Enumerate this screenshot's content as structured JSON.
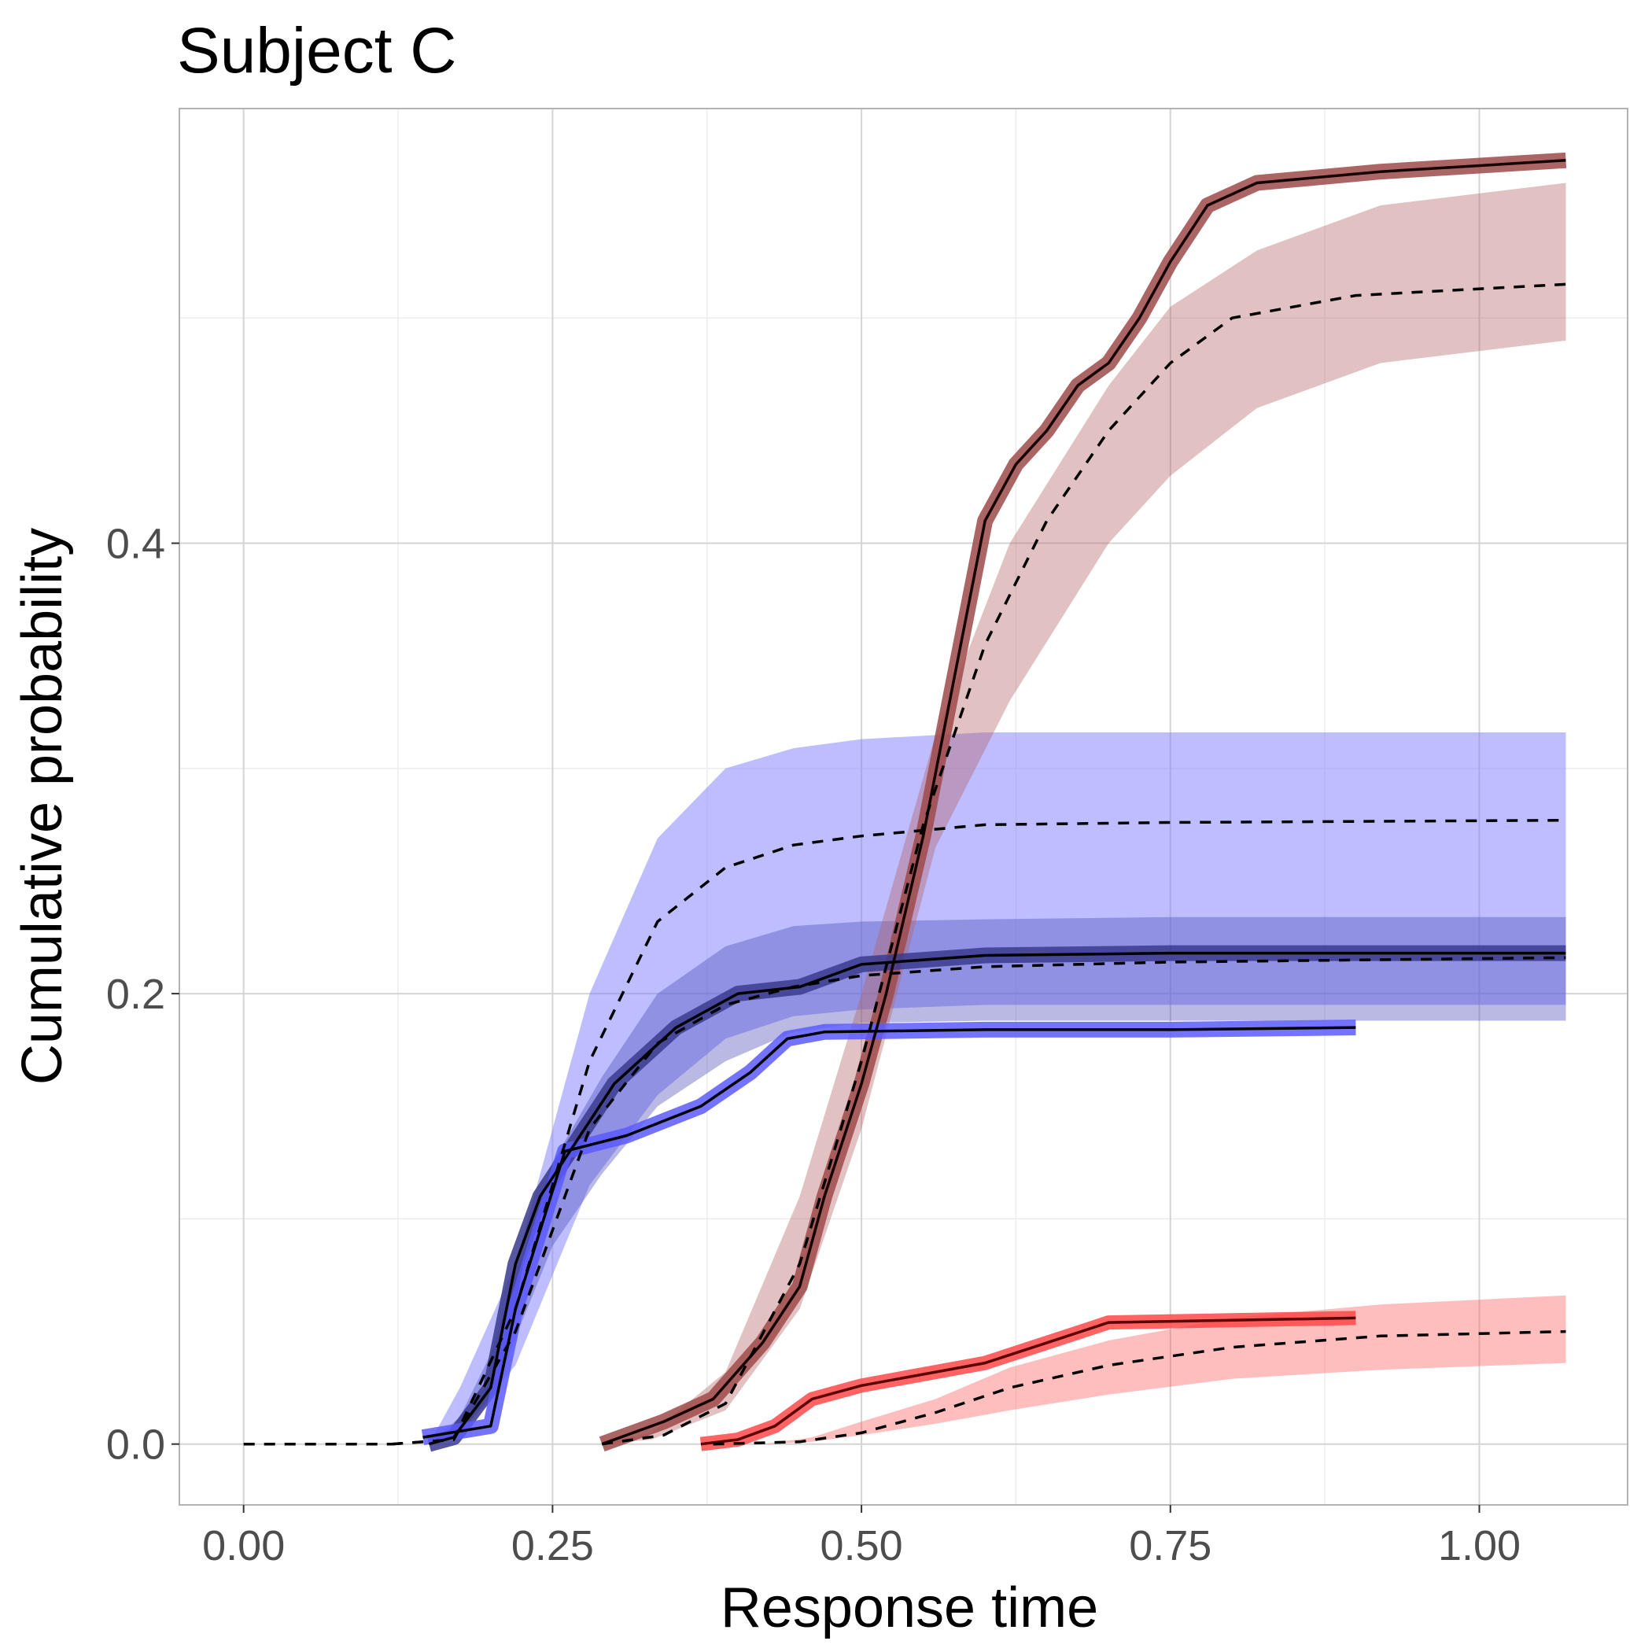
{
  "chart_data": {
    "type": "line",
    "title": "Subject C",
    "xlabel": "Response time",
    "ylabel": "Cumulative probability",
    "xlim": [
      -0.052,
      1.12
    ],
    "ylim": [
      -0.027,
      0.593
    ],
    "x_ticks": [
      0.0,
      0.25,
      0.5,
      0.75,
      1.0
    ],
    "x_tick_labels": [
      "0.00",
      "0.25",
      "0.50",
      "0.75",
      "1.00"
    ],
    "y_ticks": [
      0.0,
      0.2,
      0.4
    ],
    "y_tick_labels": [
      "0.0",
      "0.2",
      "0.4"
    ],
    "grid": true,
    "legend": "none",
    "bands": [
      {
        "id": "model-blue-light",
        "color": "#7b7bff",
        "opacity": 0.5,
        "x": [
          0.12,
          0.15,
          0.175,
          0.22,
          0.28,
          0.335,
          0.39,
          0.445,
          0.5,
          0.6,
          0.75,
          1.07
        ],
        "lower": [
          0.0,
          0.0,
          0.005,
          0.035,
          0.115,
          0.155,
          0.18,
          0.19,
          0.193,
          0.195,
          0.195,
          0.195
        ],
        "upper": [
          0.0,
          0.0,
          0.025,
          0.08,
          0.2,
          0.269,
          0.3,
          0.309,
          0.313,
          0.316,
          0.316,
          0.316
        ]
      },
      {
        "id": "model-blue-dark",
        "color": "#5050b8",
        "opacity": 0.4,
        "x": [
          0.12,
          0.15,
          0.175,
          0.2,
          0.25,
          0.29,
          0.335,
          0.39,
          0.445,
          0.5,
          0.6,
          0.75,
          1.07
        ],
        "lower": [
          0.0,
          0.0,
          0.005,
          0.02,
          0.088,
          0.12,
          0.15,
          0.17,
          0.183,
          0.187,
          0.188,
          0.188,
          0.188
        ],
        "upper": [
          0.0,
          0.0,
          0.012,
          0.04,
          0.125,
          0.163,
          0.2,
          0.221,
          0.23,
          0.232,
          0.233,
          0.234,
          0.234
        ]
      },
      {
        "id": "model-darkred",
        "color": "#b56464",
        "opacity": 0.4,
        "x": [
          0.29,
          0.33,
          0.39,
          0.45,
          0.5,
          0.56,
          0.62,
          0.7,
          0.75,
          0.82,
          0.92,
          1.07
        ],
        "lower": [
          0.0,
          0.002,
          0.015,
          0.06,
          0.14,
          0.265,
          0.33,
          0.4,
          0.43,
          0.46,
          0.48,
          0.49
        ],
        "upper": [
          0.0,
          0.005,
          0.032,
          0.11,
          0.2,
          0.315,
          0.4,
          0.47,
          0.505,
          0.53,
          0.55,
          0.56
        ]
      },
      {
        "id": "model-red",
        "color": "#ff5c5c",
        "opacity": 0.4,
        "x": [
          0.38,
          0.42,
          0.46,
          0.5,
          0.56,
          0.62,
          0.7,
          0.8,
          0.92,
          1.07
        ],
        "lower": [
          0.0,
          0.0,
          0.001,
          0.004,
          0.009,
          0.015,
          0.022,
          0.029,
          0.033,
          0.036
        ],
        "upper": [
          0.0,
          0.0,
          0.003,
          0.01,
          0.02,
          0.034,
          0.046,
          0.056,
          0.062,
          0.066
        ]
      }
    ],
    "series": [
      {
        "id": "obs-darkred",
        "color": "#150000",
        "band_color": "#9d4a4a",
        "band_width": 20,
        "dash": false,
        "x": [
          0.29,
          0.34,
          0.38,
          0.42,
          0.45,
          0.47,
          0.5,
          0.52,
          0.55,
          0.575,
          0.6,
          0.625,
          0.65,
          0.675,
          0.7,
          0.725,
          0.75,
          0.78,
          0.82,
          0.92,
          1.07
        ],
        "y": [
          0.0,
          0.01,
          0.02,
          0.045,
          0.07,
          0.11,
          0.16,
          0.2,
          0.27,
          0.34,
          0.41,
          0.435,
          0.45,
          0.47,
          0.48,
          0.5,
          0.525,
          0.55,
          0.56,
          0.565,
          0.57
        ]
      },
      {
        "id": "obs-blue-dark",
        "color": "#000000",
        "band_color": "#3a3a8e",
        "band_width": 20,
        "dash": false,
        "x": [
          0.15,
          0.17,
          0.2,
          0.22,
          0.24,
          0.27,
          0.3,
          0.35,
          0.4,
          0.45,
          0.5,
          0.6,
          0.75,
          1.07
        ],
        "y": [
          0.0,
          0.003,
          0.025,
          0.08,
          0.11,
          0.135,
          0.16,
          0.185,
          0.2,
          0.203,
          0.213,
          0.217,
          0.218,
          0.218
        ]
      },
      {
        "id": "obs-blue-light",
        "color": "#000000",
        "band_color": "#5a5aff",
        "band_width": 20,
        "dash": false,
        "x": [
          0.145,
          0.2,
          0.22,
          0.26,
          0.31,
          0.37,
          0.41,
          0.44,
          0.47,
          0.6,
          0.75,
          0.9
        ],
        "y": [
          0.003,
          0.008,
          0.06,
          0.13,
          0.137,
          0.15,
          0.165,
          0.18,
          0.183,
          0.184,
          0.184,
          0.185
        ]
      },
      {
        "id": "obs-red",
        "color": "#5a0000",
        "band_color": "#ff4848",
        "band_width": 18,
        "dash": false,
        "x": [
          0.37,
          0.4,
          0.43,
          0.46,
          0.5,
          0.56,
          0.6,
          0.65,
          0.7,
          0.8,
          0.9
        ],
        "y": [
          0.0,
          0.002,
          0.008,
          0.02,
          0.026,
          0.032,
          0.036,
          0.045,
          0.054,
          0.055,
          0.056
        ]
      },
      {
        "id": "model-mean-darkred",
        "color": "#000000",
        "dash": true,
        "x": [
          0.29,
          0.34,
          0.39,
          0.45,
          0.5,
          0.55,
          0.6,
          0.65,
          0.7,
          0.75,
          0.8,
          0.9,
          1.07
        ],
        "y": [
          0.0,
          0.004,
          0.018,
          0.08,
          0.17,
          0.275,
          0.355,
          0.41,
          0.45,
          0.48,
          0.5,
          0.51,
          0.515
        ]
      },
      {
        "id": "model-mean-blue-light",
        "color": "#000000",
        "dash": true,
        "x": [
          0.12,
          0.17,
          0.22,
          0.28,
          0.335,
          0.39,
          0.445,
          0.5,
          0.6,
          0.75,
          1.07
        ],
        "y": [
          0.0,
          0.002,
          0.06,
          0.17,
          0.232,
          0.256,
          0.266,
          0.27,
          0.275,
          0.276,
          0.277
        ]
      },
      {
        "id": "model-mean-blue-dark",
        "color": "#000000",
        "dash": true,
        "x": [
          0.12,
          0.17,
          0.22,
          0.28,
          0.335,
          0.39,
          0.445,
          0.5,
          0.6,
          0.75,
          1.07
        ],
        "y": [
          0.0,
          0.002,
          0.05,
          0.14,
          0.178,
          0.195,
          0.203,
          0.208,
          0.212,
          0.214,
          0.216
        ]
      },
      {
        "id": "model-mean-red",
        "color": "#000000",
        "dash": true,
        "x": [
          0.38,
          0.45,
          0.5,
          0.56,
          0.62,
          0.7,
          0.8,
          0.92,
          1.07
        ],
        "y": [
          0.0,
          0.001,
          0.005,
          0.014,
          0.025,
          0.035,
          0.043,
          0.048,
          0.05
        ]
      },
      {
        "id": "zero-baseline",
        "color": "#000000",
        "dash": true,
        "x": [
          0.0,
          0.12
        ],
        "y": [
          0.0,
          0.0
        ]
      }
    ]
  }
}
